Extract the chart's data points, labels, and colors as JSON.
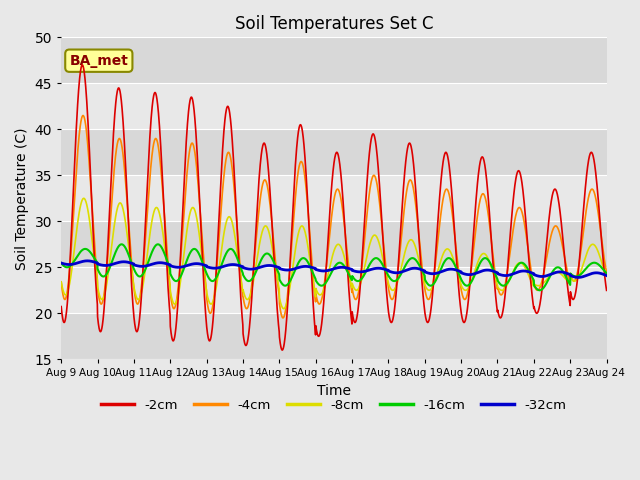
{
  "title": "Soil Temperatures Set C",
  "xlabel": "Time",
  "ylabel": "Soil Temperature (C)",
  "ylim": [
    15,
    50
  ],
  "n_days": 15,
  "legend_labels": [
    "-2cm",
    "-4cm",
    "-8cm",
    "-16cm",
    "-32cm"
  ],
  "line_colors": [
    "#dd0000",
    "#ff8800",
    "#dddd00",
    "#00cc00",
    "#0000cc"
  ],
  "line_widths": [
    1.2,
    1.2,
    1.2,
    1.5,
    2.0
  ],
  "x_tick_labels": [
    "Aug 9",
    "Aug 10",
    "Aug 11",
    "Aug 12",
    "Aug 13",
    "Aug 14",
    "Aug 15",
    "Aug 16",
    "Aug 17",
    "Aug 18",
    "Aug 19",
    "Aug 20",
    "Aug 21",
    "Aug 22",
    "Aug 23",
    "Aug 24"
  ],
  "background_color": "#e8e8e8",
  "grid_color": "#ffffff",
  "band_colors": [
    "#d8d8d8",
    "#e8e8e8"
  ],
  "annotation_bg": "#ffff99",
  "annotation_border": "#888800",
  "annotation_text_color": "#880000",
  "figsize": [
    6.4,
    4.8
  ],
  "dpi": 100
}
